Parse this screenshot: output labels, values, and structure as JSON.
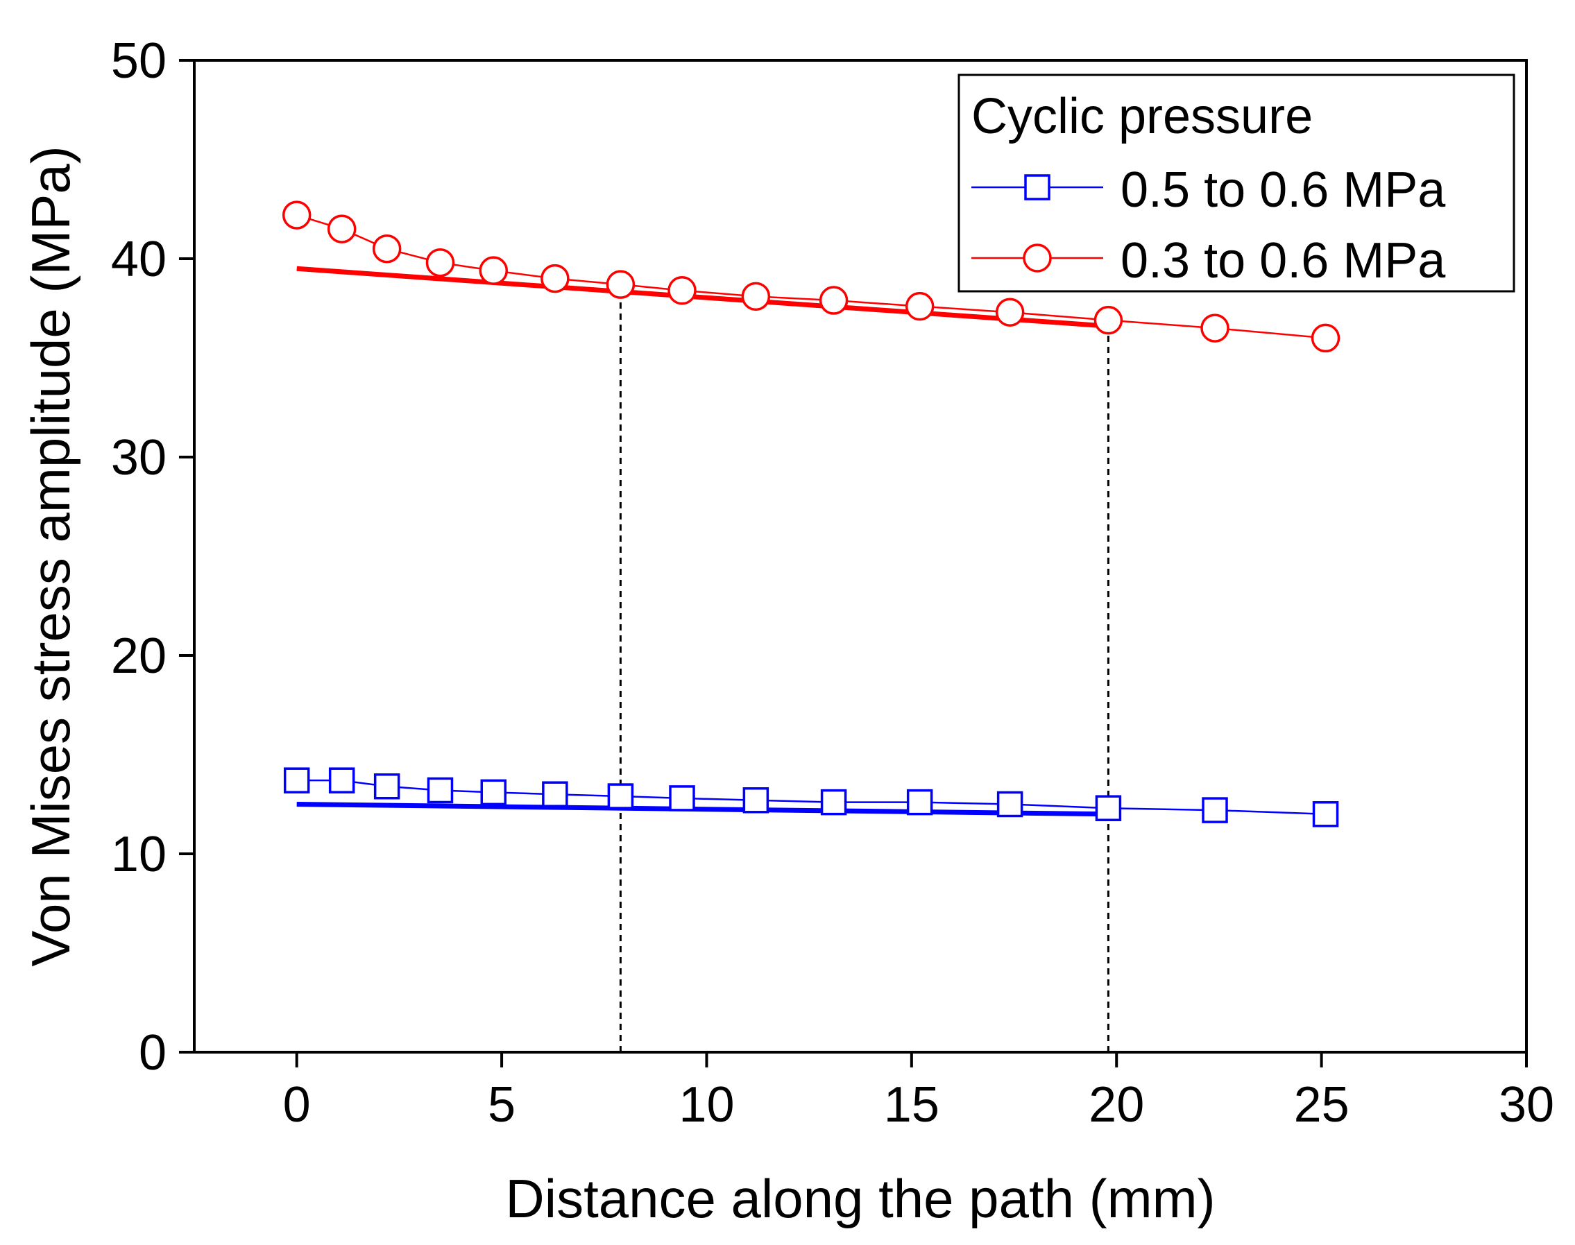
{
  "chart_data": {
    "type": "line",
    "xlabel": "Distance along the path (mm)",
    "ylabel": "Von Mises stress amplitude (MPa)",
    "xlim": [
      -2.5,
      30
    ],
    "ylim": [
      0,
      50
    ],
    "xticks": [
      0,
      5,
      10,
      15,
      20,
      25,
      30
    ],
    "yticks": [
      0,
      10,
      20,
      30,
      40,
      50
    ],
    "grid": false,
    "legend": {
      "title": "Cyclic pressure",
      "position": "top-right"
    },
    "series": [
      {
        "name": "0.5 to 0.6 MPa",
        "color": "#0000ff",
        "marker": "square",
        "x": [
          0,
          1.1,
          2.2,
          3.5,
          4.8,
          6.3,
          7.9,
          9.4,
          11.2,
          13.1,
          15.2,
          17.4,
          19.8,
          22.4,
          25.1
        ],
        "y": [
          13.7,
          13.7,
          13.4,
          13.2,
          13.1,
          13.0,
          12.9,
          12.8,
          12.7,
          12.6,
          12.6,
          12.5,
          12.3,
          12.2,
          12.0
        ]
      },
      {
        "name": "0.3 to 0.6 MPa",
        "color": "#ff0000",
        "marker": "circle",
        "x": [
          0,
          1.1,
          2.2,
          3.5,
          4.8,
          6.3,
          7.9,
          9.4,
          11.2,
          13.1,
          15.2,
          17.4,
          19.8,
          22.4,
          25.1
        ],
        "y": [
          42.2,
          41.5,
          40.5,
          39.8,
          39.4,
          39.0,
          38.7,
          38.4,
          38.1,
          37.9,
          37.6,
          37.3,
          36.9,
          36.5,
          36.0
        ]
      }
    ],
    "fit_lines": [
      {
        "series": "0.3 to 0.6 MPa",
        "color": "#ff0000",
        "x": [
          0,
          19.8
        ],
        "y": [
          39.5,
          36.6
        ]
      },
      {
        "series": "0.5 to 0.6 MPa",
        "color": "#0000ff",
        "x": [
          0,
          19.8
        ],
        "y": [
          12.5,
          12.0
        ]
      }
    ],
    "reference_lines": [
      {
        "x": 7.9,
        "y": [
          0,
          38.7
        ]
      },
      {
        "x": 19.8,
        "y": [
          0,
          36.9
        ]
      }
    ]
  }
}
